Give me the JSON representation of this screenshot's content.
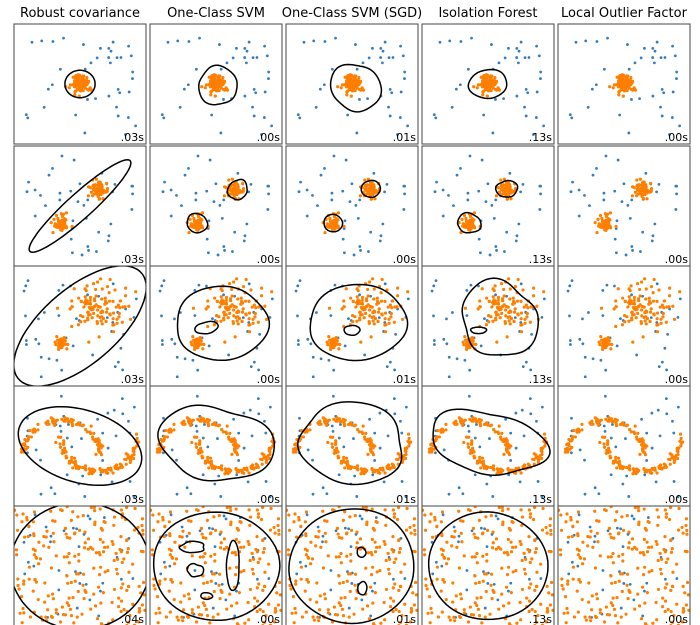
{
  "chart_data": {
    "type": "scatter",
    "grid": false,
    "xlim": [
      -7,
      7
    ],
    "ylim": [
      -7,
      7
    ],
    "colors": {
      "inlier": "#ff7f00",
      "outlier": "#377eb8",
      "decision_boundary": "#000000"
    },
    "columns": [
      "Robust covariance",
      "One-Class SVM",
      "One-Class SVM (SGD)",
      "Isolation Forest",
      "Local Outlier Factor"
    ],
    "timings": [
      [
        ".03s",
        ".00s",
        ".01s",
        ".13s",
        ".00s"
      ],
      [
        ".03s",
        ".00s",
        ".00s",
        ".13s",
        ".00s"
      ],
      [
        ".03s",
        ".00s",
        ".01s",
        ".13s",
        ".00s"
      ],
      [
        ".03s",
        ".00s",
        ".01s",
        ".13s",
        ".00s"
      ],
      [
        ".04s",
        ".00s",
        ".01s",
        ".13s",
        ".00s"
      ]
    ]
  }
}
